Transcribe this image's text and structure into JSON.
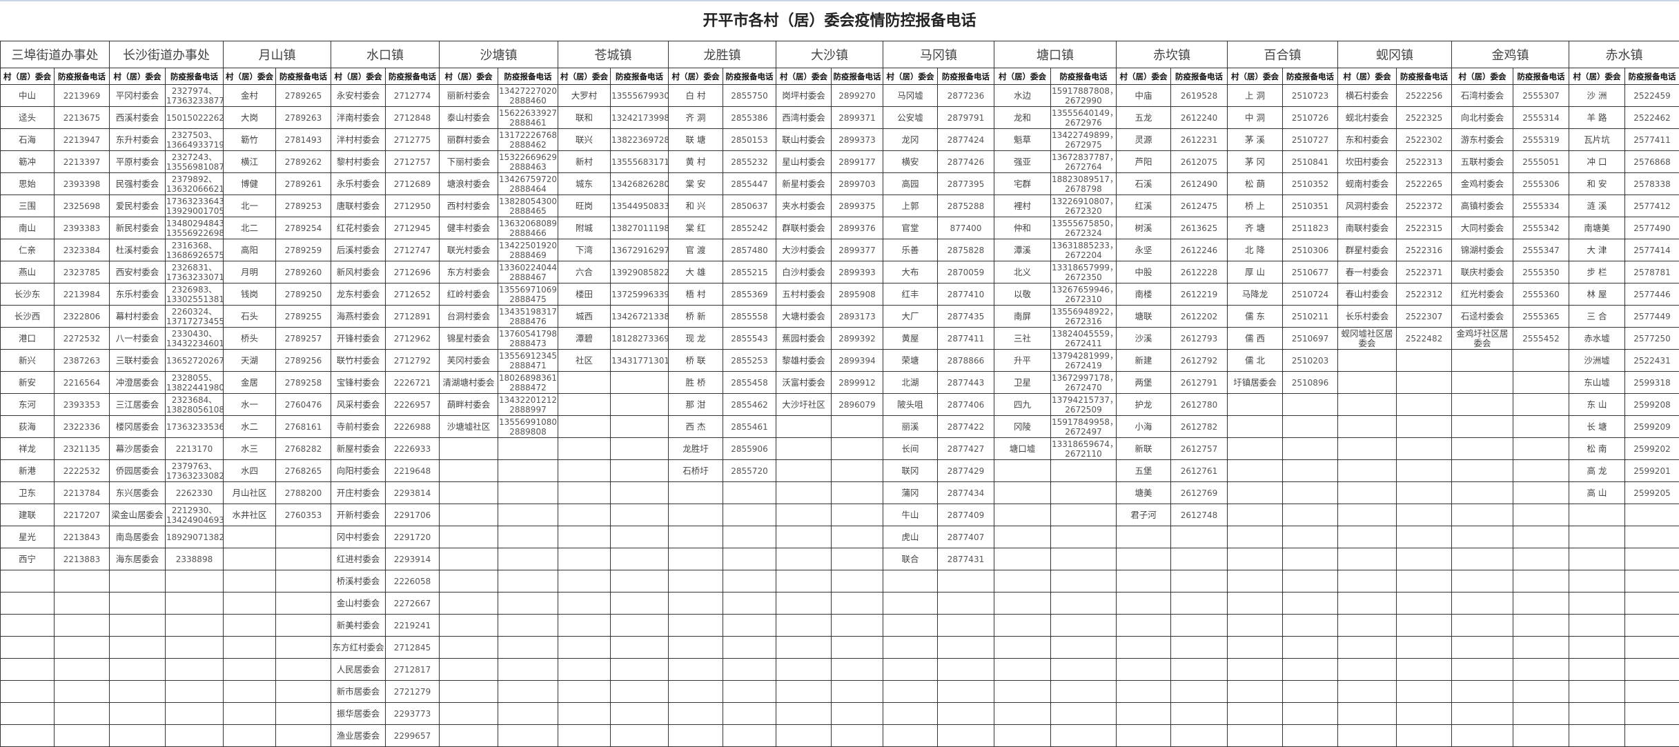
{
  "title": "开平市各村（居）委会疫情防控报备电话",
  "sub_headers": {
    "name": "村（居）委会",
    "phone": "防疫报备电话"
  },
  "towns": [
    {
      "name": "三埠街道办事处",
      "rows": [
        [
          "中山",
          "2213969"
        ],
        [
          "迳头",
          "2213675"
        ],
        [
          "石海",
          "2213947"
        ],
        [
          "簕冲",
          "2213397"
        ],
        [
          "思始",
          "2393398"
        ],
        [
          "三围",
          "2325698"
        ],
        [
          "南山",
          "2393383"
        ],
        [
          "仁亲",
          "2323384"
        ],
        [
          "燕山",
          "2323785"
        ],
        [
          "长沙东",
          "2213984"
        ],
        [
          "长沙西",
          "2322806"
        ],
        [
          "港口",
          "2272532"
        ],
        [
          "新兴",
          "2387263"
        ],
        [
          "新安",
          "2216564"
        ],
        [
          "东河",
          "2393353"
        ],
        [
          "荻海",
          "2322336"
        ],
        [
          "祥龙",
          "2321135"
        ],
        [
          "新港",
          "2222532"
        ],
        [
          "卫东",
          "2213784"
        ],
        [
          "建联",
          "2217207"
        ],
        [
          "星光",
          "2213843"
        ],
        [
          "西宁",
          "2213883"
        ]
      ]
    },
    {
      "name": "长沙街道办事处",
      "rows": [
        [
          "平冈村委会",
          "2327974、\n17363233877"
        ],
        [
          "西溪村委会",
          "15015022262"
        ],
        [
          "东升村委会",
          "2327503、\n13664933719"
        ],
        [
          "平原村委会",
          "2327243、\n13556981087"
        ],
        [
          "民强村委会",
          "2379892、\n13632066621"
        ],
        [
          "爱民村委会",
          "17363233643、\n13929001705"
        ],
        [
          "新民村委会",
          "13480294843、\n13556922698"
        ],
        [
          "杜溪村委会",
          "2316368、\n13686926575"
        ],
        [
          "西安村委会",
          "2326831、\n17363233071"
        ],
        [
          "东乐村委会",
          "2326983、\n13302551381"
        ],
        [
          "幕村村委会",
          "2260324、\n13717273455"
        ],
        [
          "八一村委会",
          "2330430、\n13432234601"
        ],
        [
          "三联村委会",
          "13652720267"
        ],
        [
          "冲澄居委会",
          "2328055、\n13822441980"
        ],
        [
          "三江居委会",
          "2323684、\n13828056108"
        ],
        [
          "楼冈居委会",
          "17363233536"
        ],
        [
          "幕沙居委会",
          "2213170"
        ],
        [
          "侨园居委会",
          "2379763、\n17363233082"
        ],
        [
          "东兴居委会",
          "2262330"
        ],
        [
          "梁金山居委会",
          "2212930、\n13424904693"
        ],
        [
          "南岛居委会",
          "18929071382"
        ],
        [
          "海东居委会",
          "2338898"
        ]
      ]
    },
    {
      "name": "月山镇",
      "rows": [
        [
          "金村",
          "2789265"
        ],
        [
          "大岗",
          "2789263"
        ],
        [
          "簕竹",
          "2781493"
        ],
        [
          "横江",
          "2789262"
        ],
        [
          "博健",
          "2789261"
        ],
        [
          "北一",
          "2789253"
        ],
        [
          "北二",
          "2789254"
        ],
        [
          "高阳",
          "2789259"
        ],
        [
          "月明",
          "2789260"
        ],
        [
          "钱岗",
          "2789250"
        ],
        [
          "石头",
          "2789255"
        ],
        [
          "桥头",
          "2789257"
        ],
        [
          "天湖",
          "2789256"
        ],
        [
          "金居",
          "2789258"
        ],
        [
          "水一",
          "2760476"
        ],
        [
          "水二",
          "2768161"
        ],
        [
          "水三",
          "2768282"
        ],
        [
          "水四",
          "2768265"
        ],
        [
          "月山社区",
          "2788200"
        ],
        [
          "水井社区",
          "2760353"
        ]
      ]
    },
    {
      "name": "水口镇",
      "rows": [
        [
          "永安村委会",
          "2712774"
        ],
        [
          "泮南村委会",
          "2712848"
        ],
        [
          "泮村村委会",
          "2712775"
        ],
        [
          "黎村村委会",
          "2712757"
        ],
        [
          "永乐村委会",
          "2712689"
        ],
        [
          "唐联村委会",
          "2712950"
        ],
        [
          "红花村委会",
          "2712945"
        ],
        [
          "后溪村委会",
          "2712747"
        ],
        [
          "新风村委会",
          "2712696"
        ],
        [
          "龙东村委会",
          "2712652"
        ],
        [
          "海燕村委会",
          "2712891"
        ],
        [
          "开锋村委会",
          "2712962"
        ],
        [
          "联竹村委会",
          "2712792"
        ],
        [
          "宝锋村委会",
          "2226721"
        ],
        [
          "风采村委会",
          "2226957"
        ],
        [
          "寺前村委会",
          "2226988"
        ],
        [
          "新屋村委会",
          "2226933"
        ],
        [
          "向阳村委会",
          "2219648"
        ],
        [
          "开庄村委会",
          "2293814"
        ],
        [
          "开新村委会",
          "2291706"
        ],
        [
          "冈中村委会",
          "2291720"
        ],
        [
          "红进村委会",
          "2293914"
        ],
        [
          "桥溪村委会",
          "2226058"
        ],
        [
          "金山村委会",
          "2272667"
        ],
        [
          "新美村委会",
          "2219241"
        ],
        [
          "东方红村委会",
          "2712845"
        ],
        [
          "人民居委会",
          "2712817"
        ],
        [
          "新市居委会",
          "2721279"
        ],
        [
          "振华居委会",
          "2293773"
        ],
        [
          "渔业居委会",
          "2299657"
        ]
      ]
    },
    {
      "name": "沙塘镇",
      "rows": [
        [
          "丽新村委会",
          "13427227020\n2888460"
        ],
        [
          "泰山村委会",
          "15622633927\n2888461"
        ],
        [
          "丽群村委会",
          "13172226768\n2888462"
        ],
        [
          "下丽村委会",
          "15322669629\n2888463"
        ],
        [
          "塘浪村委会",
          "13426759720\n2888464"
        ],
        [
          "西村村委会",
          "13828054300\n2888465"
        ],
        [
          "健丰村委会",
          "13632068089\n2888466"
        ],
        [
          "联光村委会",
          "13422501920\n2888469"
        ],
        [
          "东方村委会",
          "13360224044\n2888467"
        ],
        [
          "红岭村委会",
          "13556971069\n2888475"
        ],
        [
          "台洞村委会",
          "13435198317\n2888476"
        ],
        [
          "锦星村委会",
          "13760541798\n2888473"
        ],
        [
          "芙冈村委会",
          "13556912345\n2888471"
        ],
        [
          "清湖塘村委会",
          "18026898361\n2888472"
        ],
        [
          "蓢畔村委会",
          "13432201212\n2888997"
        ],
        [
          "沙塘墟社区",
          "13556991080\n2889808"
        ]
      ]
    },
    {
      "name": "苍城镇",
      "rows": [
        [
          "大罗村",
          "13555679930"
        ],
        [
          "联和",
          "13242173998"
        ],
        [
          "联兴",
          "13822369728"
        ],
        [
          "新村",
          "13555683171"
        ],
        [
          "城东",
          "13426826280"
        ],
        [
          "旺岗",
          "13544950833"
        ],
        [
          "附城",
          "13827011198"
        ],
        [
          "下湾",
          "13672916297"
        ],
        [
          "六合",
          "13929085822"
        ],
        [
          "楼田",
          "13725996339"
        ],
        [
          "城西",
          "13426721338"
        ],
        [
          "潭碧",
          "18128273369"
        ],
        [
          "社区",
          "13431771301"
        ]
      ]
    },
    {
      "name": "龙胜镇",
      "rows": [
        [
          "白 村",
          "2855750"
        ],
        [
          "齐 洞",
          "2855386"
        ],
        [
          "联 塘",
          "2850153"
        ],
        [
          "黄 村",
          "2855232"
        ],
        [
          "棠 安",
          "2855447"
        ],
        [
          "和 兴",
          "2850637"
        ],
        [
          "棠 红",
          "2855242"
        ],
        [
          "官 渡",
          "2857480"
        ],
        [
          "大 雄",
          "2855215"
        ],
        [
          "梧 村",
          "2855369"
        ],
        [
          "桥 新",
          "2855558"
        ],
        [
          "现 龙",
          "2855543"
        ],
        [
          "桥 联",
          "2855253"
        ],
        [
          "胜 桥",
          "2855458"
        ],
        [
          "那 泔",
          "2855462"
        ],
        [
          "西 杰",
          "2855461"
        ],
        [
          "龙胜圩",
          "2855906"
        ],
        [
          "石桥圩",
          "2855720"
        ]
      ]
    },
    {
      "name": "大沙镇",
      "rows": [
        [
          "岗坪村委会",
          "2899270"
        ],
        [
          "西湾村委会",
          "2899371"
        ],
        [
          "联山村委会",
          "2899373"
        ],
        [
          "星山村委会",
          "2899177"
        ],
        [
          "新星村委会",
          "2899703"
        ],
        [
          "夹水村委会",
          "2899375"
        ],
        [
          "群联村委会",
          "2899376"
        ],
        [
          "大沙村委会",
          "2899377"
        ],
        [
          "白沙村委会",
          "2899393"
        ],
        [
          "五村村委会",
          "2895908"
        ],
        [
          "大塘村委会",
          "2893173"
        ],
        [
          "蕉园村委会",
          "2899392"
        ],
        [
          "黎雄村委会",
          "2899394"
        ],
        [
          "沃富村委会",
          "2899912"
        ],
        [
          "大沙圩社区",
          "2896079"
        ]
      ]
    },
    {
      "name": "马冈镇",
      "rows": [
        [
          "马冈墟",
          "2877236"
        ],
        [
          "公安墟",
          "2879791"
        ],
        [
          "龙冈",
          "2877424"
        ],
        [
          "横安",
          "2877426"
        ],
        [
          "高园",
          "2877395"
        ],
        [
          "上郭",
          "2875288"
        ],
        [
          "官堂",
          "877400"
        ],
        [
          "乐善",
          "2875828"
        ],
        [
          "大布",
          "2870059"
        ],
        [
          "红丰",
          "2877410"
        ],
        [
          "大厂",
          "2877435"
        ],
        [
          "黄屋",
          "2877411"
        ],
        [
          "荣塘",
          "2878866"
        ],
        [
          "北湖",
          "2877443"
        ],
        [
          "陂头咀",
          "2877406"
        ],
        [
          "丽溪",
          "2877422"
        ],
        [
          "长间",
          "2877427"
        ],
        [
          "联冈",
          "2877429"
        ],
        [
          "蒲冈",
          "2877434"
        ],
        [
          "牛山",
          "2877409"
        ],
        [
          "虎山",
          "2877407"
        ],
        [
          "联合",
          "2877431"
        ]
      ]
    },
    {
      "name": "塘口镇",
      "rows": [
        [
          "水边",
          "15917887808，\n2672990"
        ],
        [
          "龙和",
          "13555640149，\n2672976"
        ],
        [
          "魁草",
          "13422749899，\n2672975"
        ],
        [
          "强亚",
          "13672837787，\n2672764"
        ],
        [
          "宅群",
          "18823089517，\n2678798"
        ],
        [
          "裡村",
          "13226910807，\n2672320"
        ],
        [
          "仲和",
          "13555675850，\n2672324"
        ],
        [
          "潭溪",
          "13631885233，\n2672204"
        ],
        [
          "北义",
          "13318657999，\n2672350"
        ],
        [
          "以敬",
          "13267659946，\n2672310"
        ],
        [
          "南屏",
          "13556948922，\n2672316"
        ],
        [
          "三社",
          "13824045559，\n2672411"
        ],
        [
          "升平",
          "13794281999，\n2672419"
        ],
        [
          "卫星",
          "13672997178，\n2672470"
        ],
        [
          "四九",
          "13794215737，\n2672509"
        ],
        [
          "冈陵",
          "15917849958，\n2672497"
        ],
        [
          "塘口墟",
          "13318659674，\n2672110"
        ]
      ]
    },
    {
      "name": "赤坎镇",
      "rows": [
        [
          "中庙",
          "2619528"
        ],
        [
          "五龙",
          "2612240"
        ],
        [
          "灵源",
          "2612231"
        ],
        [
          "芦阳",
          "2612075"
        ],
        [
          "石溪",
          "2612490"
        ],
        [
          "红溪",
          "2612475"
        ],
        [
          "树溪",
          "2613625"
        ],
        [
          "永坚",
          "2612246"
        ],
        [
          "中股",
          "2612228"
        ],
        [
          "南楼",
          "2612219"
        ],
        [
          "塘联",
          "2612202"
        ],
        [
          "沙溪",
          "2612793"
        ],
        [
          "新建",
          "2612792"
        ],
        [
          "两堡",
          "2612791"
        ],
        [
          "护龙",
          "2612780"
        ],
        [
          "小海",
          "2612782"
        ],
        [
          "新联",
          "2612757"
        ],
        [
          "五堡",
          "2612761"
        ],
        [
          "塘美",
          "2612769"
        ],
        [
          "君子河",
          "2612748"
        ]
      ]
    },
    {
      "name": "百合镇",
      "rows": [
        [
          "上 洞",
          "2510723"
        ],
        [
          "中 洞",
          "2510726"
        ],
        [
          "茅 溪",
          "2510727"
        ],
        [
          "茅 冈",
          "2510841"
        ],
        [
          "松 蓢",
          "2510352"
        ],
        [
          "桥 上",
          "2510351"
        ],
        [
          "齐  塘",
          "2511823"
        ],
        [
          "北 降",
          "2510306"
        ],
        [
          "厚 山",
          "2510677"
        ],
        [
          "马降龙",
          "2510724"
        ],
        [
          "儒 东",
          "2510211"
        ],
        [
          "儒 西",
          "2510697"
        ],
        [
          "儒 北",
          "2510203"
        ],
        [
          "圩镇居委会",
          "2510896"
        ]
      ]
    },
    {
      "name": "蚬冈镇",
      "rows": [
        [
          "横石村委会",
          "2522256"
        ],
        [
          "蚬北村委会",
          "2522325"
        ],
        [
          "东和村委会",
          "2522302"
        ],
        [
          "坎田村委会",
          "2522313"
        ],
        [
          "蚬南村委会",
          "2522265"
        ],
        [
          "风洞村委会",
          "2522372"
        ],
        [
          "南联村委会",
          "2522315"
        ],
        [
          "群星村委会",
          "2522316"
        ],
        [
          "春一村委会",
          "2522371"
        ],
        [
          "春山村委会",
          "2522312"
        ],
        [
          "长乐村委会",
          "2522307"
        ],
        [
          "蚬冈墟社区居委会",
          "2522482"
        ]
      ]
    },
    {
      "name": "金鸡镇",
      "rows": [
        [
          "石湾村委会",
          "2555307"
        ],
        [
          "向北村委会",
          "2555314"
        ],
        [
          "游东村委会",
          "2555319"
        ],
        [
          "五联村委会",
          "2555051"
        ],
        [
          "金鸡村委会",
          "2555306"
        ],
        [
          "高镇村委会",
          "2555334"
        ],
        [
          "大同村委会",
          "2555342"
        ],
        [
          "锦湖村委会",
          "2555347"
        ],
        [
          "联庆村委会",
          "2555350"
        ],
        [
          "红光村委会",
          "2555360"
        ],
        [
          "石迳村委会",
          "2555365"
        ],
        [
          "金鸡圩社区居委会",
          "2555452"
        ]
      ]
    },
    {
      "name": "赤水镇",
      "rows": [
        [
          "沙  洲",
          "2522459"
        ],
        [
          "羊  路",
          "2522462"
        ],
        [
          "瓦片坑",
          "2577411"
        ],
        [
          "冲  口",
          "2576868"
        ],
        [
          "和  安",
          "2578338"
        ],
        [
          "涟  溪",
          "2577412"
        ],
        [
          "南塘美",
          "2577490"
        ],
        [
          "大  津",
          "2577414"
        ],
        [
          "步  栏",
          "2578781"
        ],
        [
          "林  屋",
          "2577446"
        ],
        [
          "三  合",
          "2577449"
        ],
        [
          "赤水墟",
          "2577250"
        ],
        [
          "沙洲墟",
          "2522431"
        ],
        [
          "东山墟",
          "2599318"
        ],
        [
          "东  山",
          "2599208"
        ],
        [
          "长  塘",
          "2599209"
        ],
        [
          "松  南",
          "2599202"
        ],
        [
          "高  龙",
          "2599201"
        ],
        [
          "高  山",
          "2599205"
        ]
      ]
    }
  ]
}
